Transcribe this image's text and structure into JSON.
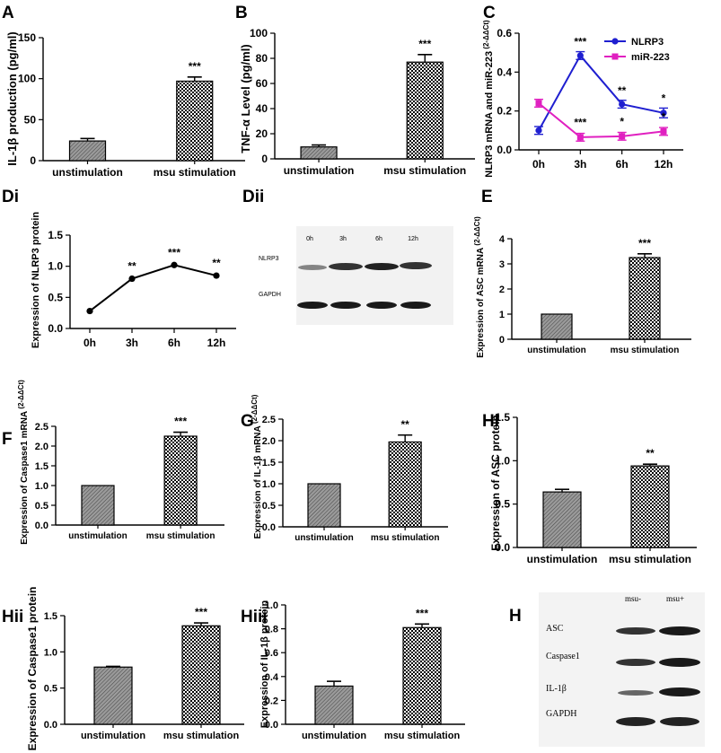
{
  "colors": {
    "nlrp3": "#1f1fd0",
    "mir223": "#e020c0",
    "axis": "#000000",
    "bar_gray": "#8a8a8a",
    "blot": "#2a2a2a"
  },
  "chart_data": [
    {
      "id": "A",
      "type": "bar",
      "panel_label": "A",
      "ylabel": "IL-1β  production (pg/ml)",
      "categories": [
        "unstimulation",
        "msu stimulation"
      ],
      "values": [
        24,
        97
      ],
      "errors": [
        3,
        5
      ],
      "ylim": [
        0,
        150
      ],
      "yticks": [
        0,
        50,
        100,
        150
      ],
      "significance": [
        "",
        "***"
      ]
    },
    {
      "id": "B",
      "type": "bar",
      "panel_label": "B",
      "ylabel": "TNF-α  Level (pg/ml)",
      "categories": [
        "unstimulation",
        "msu stimulation"
      ],
      "values": [
        9.5,
        77
      ],
      "errors": [
        1.5,
        6
      ],
      "ylim": [
        0,
        100
      ],
      "yticks": [
        0,
        20,
        40,
        60,
        80,
        100
      ],
      "significance": [
        "",
        "***"
      ]
    },
    {
      "id": "C",
      "type": "line",
      "panel_label": "C",
      "ylabel": "NLRP3 mRNA and miR-223",
      "ylabel_sup": "(2-ΔΔCt)",
      "x": [
        "0h",
        "3h",
        "6h",
        "12h"
      ],
      "ylim": [
        0,
        0.6
      ],
      "yticks": [
        0.0,
        0.2,
        0.4,
        0.6
      ],
      "series": [
        {
          "name": "NLRP3",
          "values": [
            0.1,
            0.485,
            0.235,
            0.19
          ],
          "errors": [
            0.02,
            0.02,
            0.02,
            0.025
          ],
          "significance": [
            "",
            "***",
            "**",
            "*"
          ]
        },
        {
          "name": "miR-223",
          "values": [
            0.24,
            0.065,
            0.07,
            0.095
          ],
          "errors": [
            0.02,
            0.02,
            0.02,
            0.02
          ],
          "significance": [
            "",
            "***",
            "*",
            "*"
          ]
        }
      ]
    },
    {
      "id": "Di",
      "type": "line",
      "panel_label": "Di",
      "ylabel": "Expression of NLRP3 protein",
      "x": [
        "0h",
        "3h",
        "6h",
        "12h"
      ],
      "ylim": [
        0,
        1.5
      ],
      "yticks": [
        0.0,
        0.5,
        1.0,
        1.5
      ],
      "series": [
        {
          "name": "NLRP3 protein",
          "values": [
            0.28,
            0.8,
            1.02,
            0.85
          ],
          "significance": [
            "",
            "**",
            "***",
            "**"
          ]
        }
      ]
    },
    {
      "id": "E",
      "type": "bar",
      "panel_label": "E",
      "ylabel": "Expression of ASC mRNA",
      "ylabel_sup": "(2-ΔΔCt)",
      "categories": [
        "unstimulation",
        "msu stimulation"
      ],
      "values": [
        1.0,
        3.25
      ],
      "errors": [
        0,
        0.15
      ],
      "ylim": [
        0,
        4
      ],
      "yticks": [
        0,
        1,
        2,
        3,
        4
      ],
      "significance": [
        "",
        "***"
      ]
    },
    {
      "id": "F",
      "type": "bar",
      "panel_label": "F",
      "ylabel": "Expression of  Caspase1 mRNA",
      "ylabel_sup": "(2-ΔΔCt)",
      "categories": [
        "unstimulation",
        "msu stimulation"
      ],
      "values": [
        1.0,
        2.25
      ],
      "errors": [
        0,
        0.1
      ],
      "ylim": [
        0,
        2.5
      ],
      "yticks": [
        0.0,
        0.5,
        1.0,
        1.5,
        2.0,
        2.5
      ],
      "significance": [
        "",
        "***"
      ]
    },
    {
      "id": "G",
      "type": "bar",
      "panel_label": "G",
      "ylabel": "Expression of  IL-1β mRNA",
      "ylabel_sup": "(2-ΔΔCt)",
      "categories": [
        "unstimulation",
        "msu stimulation"
      ],
      "values": [
        1.0,
        1.97
      ],
      "errors": [
        0,
        0.16
      ],
      "ylim": [
        0,
        2.5
      ],
      "yticks": [
        0.0,
        0.5,
        1.0,
        1.5,
        2.0,
        2.5
      ],
      "significance": [
        "",
        "**"
      ]
    },
    {
      "id": "Hi",
      "type": "bar",
      "panel_label": "Hi",
      "ylabel": "Expression of ASC protein",
      "categories": [
        "unstimulation",
        "msu stimulation"
      ],
      "values": [
        0.64,
        0.94
      ],
      "errors": [
        0.03,
        0.02
      ],
      "ylim": [
        0,
        1.5
      ],
      "yticks": [
        0.0,
        0.5,
        1.0,
        1.5
      ],
      "significance": [
        "",
        "**"
      ]
    },
    {
      "id": "Hii",
      "type": "bar",
      "panel_label": "Hii",
      "ylabel": "Expression of  Caspase1 protein",
      "categories": [
        "unstimulation",
        "msu stimulation"
      ],
      "values": [
        0.79,
        1.36
      ],
      "errors": [
        0.01,
        0.04
      ],
      "ylim": [
        0,
        1.5
      ],
      "yticks": [
        0.0,
        0.5,
        1.0,
        1.5
      ],
      "significance": [
        "",
        "***"
      ]
    },
    {
      "id": "Hiii",
      "type": "bar",
      "panel_label": "Hiii",
      "ylabel": "Expression of IL-1β protein",
      "categories": [
        "unstimulation",
        "msu stimulation"
      ],
      "values": [
        0.32,
        0.81
      ],
      "errors": [
        0.04,
        0.03
      ],
      "ylim": [
        0,
        1.0
      ],
      "yticks": [
        0.0,
        0.2,
        0.4,
        0.6,
        0.8,
        1.0
      ],
      "significance": [
        "",
        "***"
      ]
    }
  ],
  "blots": {
    "Dii": {
      "panel_label": "Dii",
      "lanes": [
        "0h",
        "3h",
        "6h",
        "12h"
      ],
      "rows": [
        "NLRP3",
        "GAPDH"
      ]
    },
    "H": {
      "panel_label": "H",
      "lanes": [
        "msu-",
        "msu+"
      ],
      "rows": [
        "ASC",
        "Caspase1",
        "IL-1β",
        "GAPDH"
      ]
    }
  }
}
